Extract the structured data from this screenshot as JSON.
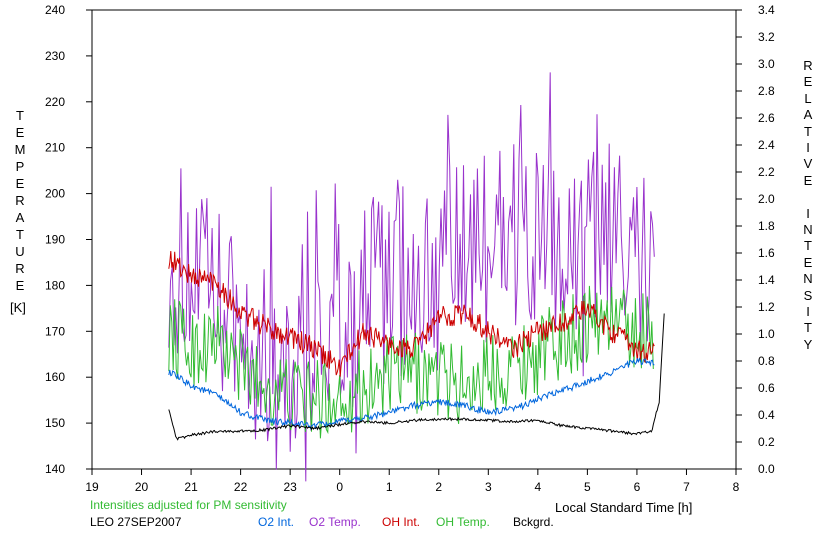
{
  "chart_data": {
    "type": "line",
    "left_axis_label": "TEMPERATURE",
    "left_axis_unit": "[K]",
    "right_axis_label": "RELATIVE INTENSITY",
    "xlabel": "Local Standard Time [h]",
    "xlim": [
      19,
      32
    ],
    "x_ticks": [
      "19",
      "20",
      "21",
      "22",
      "23",
      "0",
      "1",
      "2",
      "3",
      "4",
      "5",
      "6",
      "7",
      "8"
    ],
    "y_left_lim": [
      140,
      240
    ],
    "y_left_ticks": [
      "140",
      "150",
      "160",
      "170",
      "180",
      "190",
      "200",
      "210",
      "220",
      "230",
      "240"
    ],
    "y_right_lim": [
      0,
      3.4
    ],
    "y_right_ticks": [
      "0.0",
      "0.2",
      "0.4",
      "0.6",
      "0.8",
      "1.0",
      "1.2",
      "1.4",
      "1.6",
      "1.8",
      "2.0",
      "2.2",
      "2.4",
      "2.6",
      "2.8",
      "3.0",
      "3.2",
      "3.4"
    ],
    "grid": false,
    "note": "Intensities adjusted for PM sensitivity",
    "station_date": "LEO 27SEP2007",
    "series": [
      {
        "name": "O2 Int.",
        "color": "#0066dd",
        "axis": "right",
        "x": [
          20.55,
          21.0,
          21.5,
          22.0,
          22.5,
          23.0,
          23.5,
          24.0,
          24.5,
          25.0,
          25.5,
          26.0,
          26.5,
          27.0,
          27.5,
          28.0,
          28.5,
          29.0,
          29.5,
          30.0,
          30.35
        ],
        "y": [
          0.72,
          0.62,
          0.55,
          0.42,
          0.36,
          0.34,
          0.32,
          0.35,
          0.38,
          0.42,
          0.47,
          0.5,
          0.47,
          0.42,
          0.44,
          0.52,
          0.58,
          0.65,
          0.72,
          0.8,
          0.78
        ]
      },
      {
        "name": "O2 Temp.",
        "color": "#9933cc",
        "axis": "left",
        "x": [
          20.55,
          21.0,
          21.5,
          22.0,
          22.5,
          23.0,
          23.5,
          24.0,
          24.5,
          25.0,
          25.5,
          26.0,
          26.5,
          27.0,
          27.5,
          28.0,
          28.5,
          29.0,
          29.5,
          30.0,
          30.35
        ],
        "y": [
          188,
          182,
          176,
          170,
          165,
          168,
          170,
          172,
          178,
          180,
          182,
          183,
          185,
          190,
          192,
          188,
          186,
          190,
          188,
          186,
          185
        ]
      },
      {
        "name": "OH Int.",
        "color": "#cc0000",
        "axis": "left",
        "x": [
          20.55,
          21.0,
          21.5,
          22.0,
          22.5,
          23.0,
          23.5,
          24.0,
          24.5,
          25.0,
          25.5,
          26.0,
          26.5,
          27.0,
          27.5,
          28.0,
          28.5,
          29.0,
          29.5,
          30.0,
          30.35
        ],
        "y": [
          186,
          182,
          181,
          174,
          171,
          169,
          166,
          162,
          170,
          167,
          166,
          173,
          174,
          170,
          166,
          170,
          172,
          175,
          170,
          166,
          165
        ]
      },
      {
        "name": "OH Temp.",
        "color": "#33bb33",
        "axis": "left",
        "x": [
          20.55,
          21.0,
          21.5,
          22.0,
          22.5,
          23.0,
          23.5,
          24.0,
          24.5,
          25.0,
          25.5,
          26.0,
          26.5,
          27.0,
          27.5,
          28.0,
          28.5,
          29.0,
          29.5,
          30.0,
          30.35
        ],
        "y": [
          170,
          166,
          168,
          162,
          158,
          156,
          155,
          156,
          158,
          160,
          161,
          160,
          158,
          161,
          163,
          165,
          168,
          172,
          173,
          170,
          170
        ]
      },
      {
        "name": "Bckgrd.",
        "color": "#000000",
        "axis": "right",
        "x": [
          20.55,
          20.7,
          21.0,
          21.5,
          22.0,
          22.5,
          23.0,
          23.5,
          24.0,
          24.5,
          25.0,
          25.5,
          26.0,
          26.5,
          27.0,
          27.5,
          28.0,
          28.5,
          29.0,
          29.5,
          30.0,
          30.3,
          30.45,
          30.55
        ],
        "y": [
          0.45,
          0.22,
          0.25,
          0.28,
          0.28,
          0.29,
          0.32,
          0.3,
          0.33,
          0.35,
          0.34,
          0.36,
          0.37,
          0.37,
          0.36,
          0.35,
          0.36,
          0.32,
          0.3,
          0.28,
          0.26,
          0.28,
          0.5,
          1.15
        ]
      }
    ]
  }
}
